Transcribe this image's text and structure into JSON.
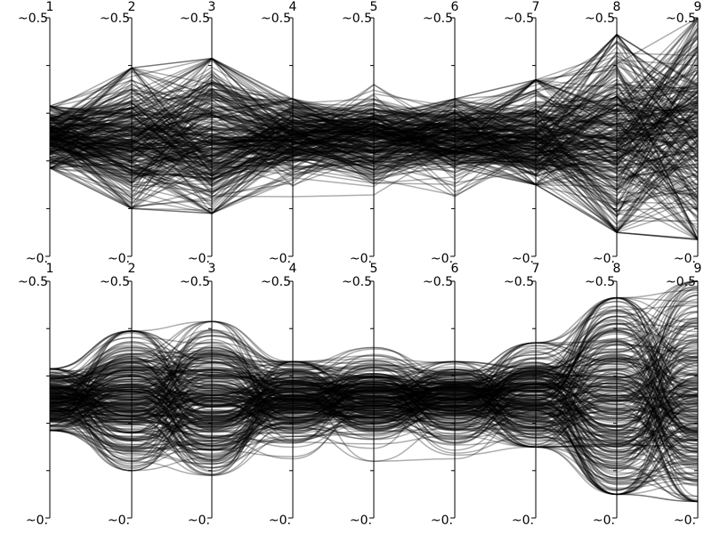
{
  "chart_data": [
    {
      "type": "parallel-coordinates",
      "panel": "top",
      "curve": "straight",
      "axes": [
        "1",
        "2",
        "3",
        "4",
        "5",
        "6",
        "7",
        "8",
        "9"
      ],
      "axis_top_label": "~0.5",
      "axis_bottom_label": "~0.",
      "ylim": [
        -0.5,
        0.5
      ],
      "num_lines": 300,
      "line_color": "#000000",
      "line_opacity": 0.32,
      "axis_spread": [
        0.26,
        0.55,
        0.65,
        0.32,
        0.33,
        0.33,
        0.45,
        0.85,
        1.0
      ],
      "series_envelope": {
        "max": [
          0.13,
          0.29,
          0.33,
          0.16,
          0.22,
          0.16,
          0.24,
          0.43,
          0.5
        ],
        "min": [
          -0.13,
          -0.3,
          -0.32,
          -0.25,
          -0.26,
          -0.25,
          -0.2,
          -0.4,
          -0.43
        ]
      }
    },
    {
      "type": "parallel-coordinates",
      "panel": "bottom",
      "curve": "smooth",
      "axes": [
        "1",
        "2",
        "3",
        "4",
        "5",
        "6",
        "7",
        "8",
        "9"
      ],
      "axis_top_label": "~0.5",
      "axis_bottom_label": "~0.",
      "ylim": [
        -0.5,
        0.5
      ],
      "num_lines": 300,
      "line_color": "#000000",
      "line_opacity": 0.32,
      "axis_spread": [
        0.26,
        0.55,
        0.65,
        0.32,
        0.33,
        0.33,
        0.45,
        0.85,
        1.0
      ],
      "series_envelope": {
        "max": [
          0.13,
          0.29,
          0.33,
          0.16,
          0.22,
          0.16,
          0.24,
          0.43,
          0.5
        ],
        "min": [
          -0.13,
          -0.3,
          -0.32,
          -0.25,
          -0.26,
          -0.25,
          -0.2,
          -0.4,
          -0.43
        ]
      }
    }
  ]
}
